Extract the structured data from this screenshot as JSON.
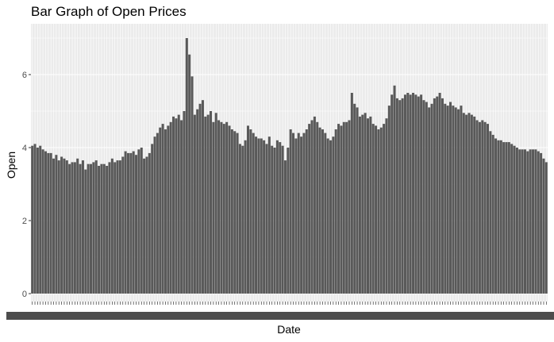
{
  "chart_data": {
    "type": "bar",
    "title": "Bar Graph of Open Prices",
    "xlabel": "Date",
    "ylabel": "Open",
    "ylim": [
      0,
      7.2
    ],
    "yticks": [
      0,
      2,
      4,
      6
    ],
    "grid": true,
    "legend": "none",
    "bar_color": "#595959",
    "panel_color": "#ebebeb",
    "gridline_color": "#ffffff",
    "categories_note": "",
    "values": [
      4.05,
      4.1,
      4.0,
      4.05,
      3.95,
      3.9,
      3.85,
      3.85,
      3.7,
      3.8,
      3.65,
      3.75,
      3.7,
      3.65,
      3.55,
      3.6,
      3.6,
      3.7,
      3.55,
      3.65,
      3.4,
      3.55,
      3.55,
      3.6,
      3.65,
      3.5,
      3.55,
      3.55,
      3.5,
      3.6,
      3.7,
      3.6,
      3.65,
      3.65,
      3.75,
      3.9,
      3.85,
      3.85,
      3.9,
      3.8,
      3.95,
      4.0,
      3.7,
      3.75,
      3.85,
      4.1,
      4.3,
      4.4,
      4.55,
      4.65,
      4.5,
      4.6,
      4.7,
      4.85,
      4.8,
      4.9,
      4.75,
      5.0,
      7.0,
      6.55,
      5.95,
      4.9,
      5.05,
      5.2,
      5.3,
      4.85,
      4.9,
      5.0,
      4.7,
      4.95,
      4.75,
      4.7,
      4.65,
      4.7,
      4.6,
      4.5,
      4.45,
      4.4,
      4.1,
      4.05,
      4.2,
      4.6,
      4.5,
      4.4,
      4.3,
      4.25,
      4.25,
      4.2,
      4.1,
      4.3,
      4.05,
      4.0,
      4.2,
      4.15,
      4.05,
      3.65,
      4.0,
      4.5,
      4.4,
      4.25,
      4.4,
      4.3,
      4.4,
      4.5,
      4.65,
      4.75,
      4.85,
      4.7,
      4.55,
      4.5,
      4.4,
      4.25,
      4.2,
      4.3,
      4.5,
      4.65,
      4.6,
      4.7,
      4.7,
      4.75,
      5.5,
      5.2,
      5.1,
      4.85,
      4.9,
      4.95,
      4.8,
      4.85,
      4.65,
      4.6,
      4.5,
      4.55,
      4.65,
      4.8,
      5.15,
      5.45,
      5.7,
      5.35,
      5.3,
      5.35,
      5.45,
      5.5,
      5.45,
      5.5,
      5.45,
      5.4,
      5.45,
      5.3,
      5.25,
      5.1,
      5.2,
      5.35,
      5.4,
      5.5,
      5.35,
      5.2,
      5.15,
      5.25,
      5.15,
      5.1,
      5.05,
      5.15,
      4.95,
      4.9,
      4.95,
      4.9,
      4.85,
      4.75,
      4.7,
      4.75,
      4.7,
      4.65,
      4.45,
      4.35,
      4.25,
      4.2,
      4.2,
      4.15,
      4.15,
      4.15,
      4.1,
      4.05,
      4.0,
      3.95,
      3.95,
      3.95,
      3.9,
      3.95,
      3.95,
      3.95,
      3.9,
      3.85,
      3.7,
      3.6
    ]
  }
}
